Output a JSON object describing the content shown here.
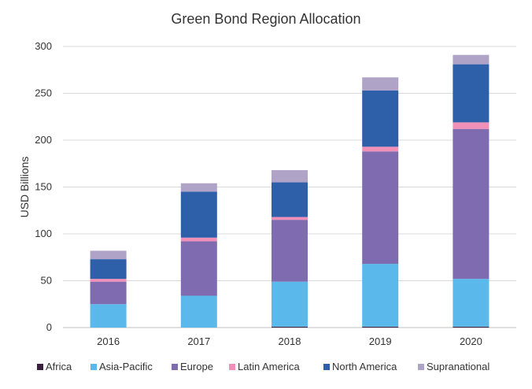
{
  "chart_data": {
    "type": "bar",
    "stacked": true,
    "title": "Green Bond Region Allocation",
    "xlabel": "",
    "ylabel": "USD Billions",
    "ylim": [
      0,
      300
    ],
    "yticks": [
      0,
      50,
      100,
      150,
      200,
      250,
      300
    ],
    "grid": true,
    "legend_position": "bottom",
    "categories": [
      "2016",
      "2017",
      "2018",
      "2019",
      "2020"
    ],
    "series": [
      {
        "name": "Africa",
        "color": "#3b1f3f",
        "values": [
          0,
          0,
          1,
          1,
          1
        ]
      },
      {
        "name": "Asia-Pacific",
        "color": "#5bb8ea",
        "values": [
          25,
          34,
          48,
          67,
          51
        ]
      },
      {
        "name": "Europe",
        "color": "#7e6bb0",
        "values": [
          24,
          58,
          66,
          120,
          160
        ]
      },
      {
        "name": "Latin America",
        "color": "#f08fb8",
        "values": [
          3,
          4,
          3,
          5,
          7
        ]
      },
      {
        "name": "North America",
        "color": "#2e5fa9",
        "values": [
          21,
          49,
          37,
          60,
          62
        ]
      },
      {
        "name": "Supranational",
        "color": "#b0a3c8",
        "values": [
          9,
          9,
          13,
          14,
          10
        ]
      }
    ]
  }
}
